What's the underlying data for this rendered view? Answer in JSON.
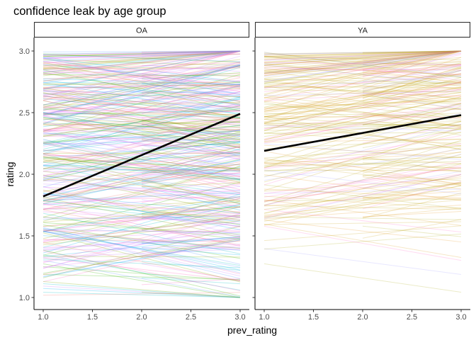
{
  "chart_data": {
    "type": "line",
    "title": "confidence leak by age group",
    "xlabel": "prev_rating",
    "ylabel": "rating",
    "xlim": [
      1.0,
      3.0
    ],
    "ylim": [
      1.0,
      3.0
    ],
    "x_ticks": [
      "1.0",
      "1.5",
      "2.0",
      "2.5",
      "3.0"
    ],
    "y_ticks": [
      "1.0",
      "1.5",
      "2.0",
      "2.5",
      "3.0"
    ],
    "grid": false,
    "legend": "none",
    "facets": [
      {
        "label": "OA",
        "fit_line": {
          "x": [
            1.0,
            3.0
          ],
          "y": [
            1.82,
            2.49
          ]
        },
        "participant_lines": {
          "count": 400,
          "palette": [
            "#f8766d",
            "#00bfc4",
            "#7cae00",
            "#c77cff",
            "#e76bf3",
            "#00b0f6",
            "#a3a500",
            "#619cff",
            "#ff62bc",
            "#39b600"
          ]
        }
      },
      {
        "label": "YA",
        "fit_line": {
          "x": [
            1.0,
            3.0
          ],
          "y": [
            2.19,
            2.48
          ]
        },
        "participant_lines": {
          "count": 250,
          "palette": [
            "#b79f00",
            "#d89000",
            "#c49a00",
            "#ff61c3",
            "#e58700",
            "#9590ff",
            "#a3a500"
          ]
        }
      }
    ]
  }
}
